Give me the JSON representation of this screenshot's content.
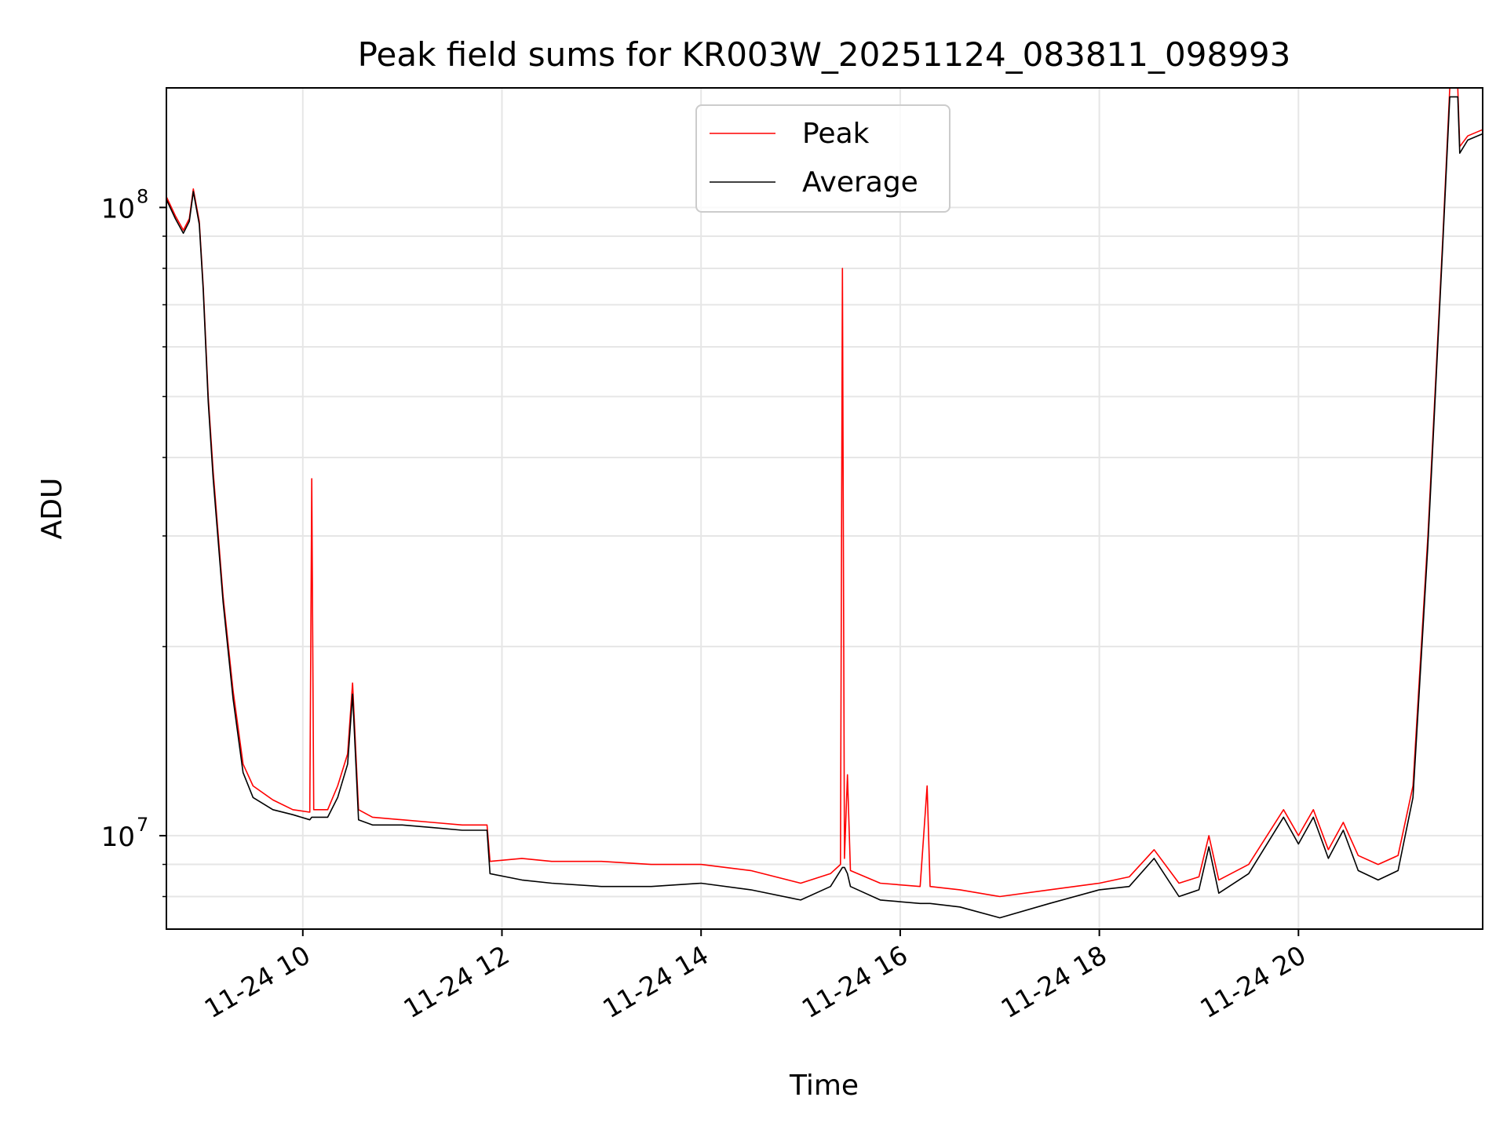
{
  "chart_data": {
    "type": "line",
    "title": "Peak field sums for KR003W_20251124_083811_098993",
    "xlabel": "Time",
    "ylabel": "ADU",
    "yscale": "log",
    "xlim_hours": [
      8.63,
      21.85
    ],
    "ylim": [
      7100000,
      155000000
    ],
    "x_tick_hours": [
      10,
      12,
      14,
      16,
      18,
      20
    ],
    "x_tick_labels": [
      "11-24 10",
      "11-24 12",
      "11-24 14",
      "11-24 16",
      "11-24 18",
      "11-24 20"
    ],
    "y_tick_values": [
      10000000,
      100000000
    ],
    "y_tick_labels": [
      {
        "base": "10",
        "exp": "7"
      },
      {
        "base": "10",
        "exp": "8"
      }
    ],
    "y_minor_ticks": [
      8000000,
      9000000,
      20000000,
      30000000,
      40000000,
      50000000,
      60000000,
      70000000,
      80000000,
      90000000
    ],
    "grid": true,
    "legend_position": "top-center",
    "series": [
      {
        "name": "Peak",
        "color": "#ff0000",
        "points": [
          [
            8.63,
            104000000
          ],
          [
            8.72,
            97000000
          ],
          [
            8.8,
            92000000
          ],
          [
            8.86,
            96000000
          ],
          [
            8.9,
            107000000
          ],
          [
            8.96,
            95000000
          ],
          [
            9.0,
            75000000
          ],
          [
            9.05,
            50000000
          ],
          [
            9.1,
            38000000
          ],
          [
            9.2,
            24000000
          ],
          [
            9.3,
            17000000
          ],
          [
            9.4,
            13000000
          ],
          [
            9.5,
            12000000
          ],
          [
            9.7,
            11400000
          ],
          [
            9.9,
            11000000
          ],
          [
            10.07,
            10900000
          ],
          [
            10.09,
            37000000
          ],
          [
            10.11,
            11000000
          ],
          [
            10.25,
            11000000
          ],
          [
            10.35,
            12000000
          ],
          [
            10.45,
            13500000
          ],
          [
            10.5,
            17500000
          ],
          [
            10.56,
            11000000
          ],
          [
            10.7,
            10700000
          ],
          [
            11.0,
            10600000
          ],
          [
            11.3,
            10500000
          ],
          [
            11.6,
            10400000
          ],
          [
            11.85,
            10400000
          ],
          [
            11.88,
            9100000
          ],
          [
            12.2,
            9200000
          ],
          [
            12.5,
            9100000
          ],
          [
            13.0,
            9100000
          ],
          [
            13.5,
            9000000
          ],
          [
            14.0,
            9000000
          ],
          [
            14.5,
            8800000
          ],
          [
            15.0,
            8400000
          ],
          [
            15.3,
            8700000
          ],
          [
            15.4,
            9000000
          ],
          [
            15.42,
            80000000
          ],
          [
            15.44,
            9200000
          ],
          [
            15.47,
            12500000
          ],
          [
            15.5,
            8800000
          ],
          [
            15.8,
            8400000
          ],
          [
            16.2,
            8300000
          ],
          [
            16.27,
            12000000
          ],
          [
            16.3,
            8300000
          ],
          [
            16.6,
            8200000
          ],
          [
            17.0,
            8000000
          ],
          [
            17.5,
            8200000
          ],
          [
            18.0,
            8400000
          ],
          [
            18.3,
            8600000
          ],
          [
            18.55,
            9500000
          ],
          [
            18.8,
            8400000
          ],
          [
            19.0,
            8600000
          ],
          [
            19.1,
            10000000
          ],
          [
            19.2,
            8500000
          ],
          [
            19.5,
            9000000
          ],
          [
            19.85,
            11000000
          ],
          [
            20.0,
            10000000
          ],
          [
            20.15,
            11000000
          ],
          [
            20.3,
            9500000
          ],
          [
            20.45,
            10500000
          ],
          [
            20.6,
            9300000
          ],
          [
            20.8,
            9000000
          ],
          [
            21.0,
            9300000
          ],
          [
            21.15,
            12000000
          ],
          [
            21.3,
            30000000
          ],
          [
            21.45,
            90000000
          ],
          [
            21.52,
            155000000
          ],
          [
            21.6,
            155000000
          ],
          [
            21.62,
            125000000
          ],
          [
            21.7,
            130000000
          ],
          [
            21.85,
            133000000
          ]
        ]
      },
      {
        "name": "Average",
        "color": "#000000",
        "points": [
          [
            8.63,
            103000000
          ],
          [
            8.72,
            96000000
          ],
          [
            8.8,
            91000000
          ],
          [
            8.86,
            95000000
          ],
          [
            8.9,
            106000000
          ],
          [
            8.96,
            94000000
          ],
          [
            9.0,
            74000000
          ],
          [
            9.05,
            49000000
          ],
          [
            9.1,
            37000000
          ],
          [
            9.2,
            23500000
          ],
          [
            9.3,
            16500000
          ],
          [
            9.4,
            12600000
          ],
          [
            9.5,
            11500000
          ],
          [
            9.7,
            11000000
          ],
          [
            9.9,
            10800000
          ],
          [
            10.07,
            10600000
          ],
          [
            10.09,
            10700000
          ],
          [
            10.11,
            10700000
          ],
          [
            10.25,
            10700000
          ],
          [
            10.35,
            11500000
          ],
          [
            10.45,
            13000000
          ],
          [
            10.5,
            16800000
          ],
          [
            10.56,
            10600000
          ],
          [
            10.7,
            10400000
          ],
          [
            11.0,
            10400000
          ],
          [
            11.3,
            10300000
          ],
          [
            11.6,
            10200000
          ],
          [
            11.85,
            10200000
          ],
          [
            11.88,
            8700000
          ],
          [
            12.2,
            8500000
          ],
          [
            12.5,
            8400000
          ],
          [
            13.0,
            8300000
          ],
          [
            13.5,
            8300000
          ],
          [
            14.0,
            8400000
          ],
          [
            14.5,
            8200000
          ],
          [
            15.0,
            7900000
          ],
          [
            15.3,
            8300000
          ],
          [
            15.4,
            8800000
          ],
          [
            15.42,
            8900000
          ],
          [
            15.44,
            8900000
          ],
          [
            15.47,
            8700000
          ],
          [
            15.5,
            8300000
          ],
          [
            15.8,
            7900000
          ],
          [
            16.2,
            7800000
          ],
          [
            16.27,
            7800000
          ],
          [
            16.3,
            7800000
          ],
          [
            16.6,
            7700000
          ],
          [
            17.0,
            7400000
          ],
          [
            17.5,
            7800000
          ],
          [
            18.0,
            8200000
          ],
          [
            18.3,
            8300000
          ],
          [
            18.55,
            9200000
          ],
          [
            18.8,
            8000000
          ],
          [
            19.0,
            8200000
          ],
          [
            19.1,
            9600000
          ],
          [
            19.2,
            8100000
          ],
          [
            19.5,
            8700000
          ],
          [
            19.85,
            10700000
          ],
          [
            20.0,
            9700000
          ],
          [
            20.15,
            10700000
          ],
          [
            20.3,
            9200000
          ],
          [
            20.45,
            10200000
          ],
          [
            20.6,
            8800000
          ],
          [
            20.8,
            8500000
          ],
          [
            21.0,
            8800000
          ],
          [
            21.15,
            11500000
          ],
          [
            21.3,
            29000000
          ],
          [
            21.45,
            88000000
          ],
          [
            21.52,
            150000000
          ],
          [
            21.6,
            150000000
          ],
          [
            21.62,
            122000000
          ],
          [
            21.7,
            128000000
          ],
          [
            21.85,
            131000000
          ]
        ]
      }
    ]
  }
}
